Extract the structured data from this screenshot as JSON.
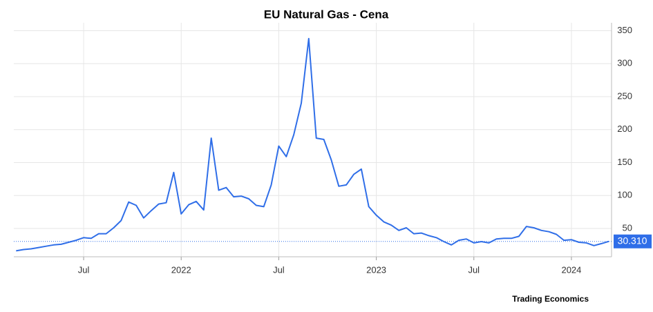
{
  "chart_data": {
    "type": "line",
    "title": "EU Natural Gas - Cena",
    "source": "Trading Economics",
    "categories": [
      null,
      null,
      null,
      null,
      null,
      null,
      null,
      null,
      null,
      "Jul",
      null,
      null,
      null,
      null,
      null,
      null,
      null,
      null,
      null,
      null,
      null,
      null,
      "2022",
      null,
      null,
      null,
      null,
      null,
      null,
      null,
      null,
      null,
      null,
      null,
      null,
      "Jul",
      null,
      null,
      null,
      null,
      null,
      null,
      null,
      null,
      null,
      null,
      null,
      null,
      "2023",
      null,
      null,
      null,
      null,
      null,
      null,
      null,
      null,
      null,
      null,
      null,
      null,
      "Jul",
      null,
      null,
      null,
      null,
      null,
      null,
      null,
      null,
      null,
      null,
      null,
      null,
      "2024",
      null,
      null,
      null,
      null,
      null
    ],
    "values": [
      16,
      18,
      19,
      21,
      23,
      25,
      26,
      29,
      32,
      36,
      35,
      42,
      42,
      51,
      62,
      90,
      85,
      66,
      77,
      87,
      89,
      135,
      72,
      86,
      91,
      78,
      187,
      108,
      112,
      98,
      99,
      95,
      85,
      83,
      116,
      175,
      159,
      192,
      240,
      338,
      187,
      185,
      154,
      114,
      116,
      132,
      140,
      83,
      70,
      60,
      55,
      47,
      51,
      42,
      43,
      39,
      36,
      30,
      25,
      32,
      34,
      28,
      30,
      28,
      34,
      35,
      35,
      38,
      53,
      51,
      47,
      45,
      41,
      32,
      33,
      29,
      28,
      24,
      27,
      30.31
    ],
    "color": "#2f6ee8",
    "ylim": [
      7,
      362
    ],
    "yticks": [
      50,
      100,
      150,
      200,
      250,
      300,
      350
    ],
    "grid": true,
    "current": {
      "value": 30.31,
      "label": "30.310"
    }
  }
}
